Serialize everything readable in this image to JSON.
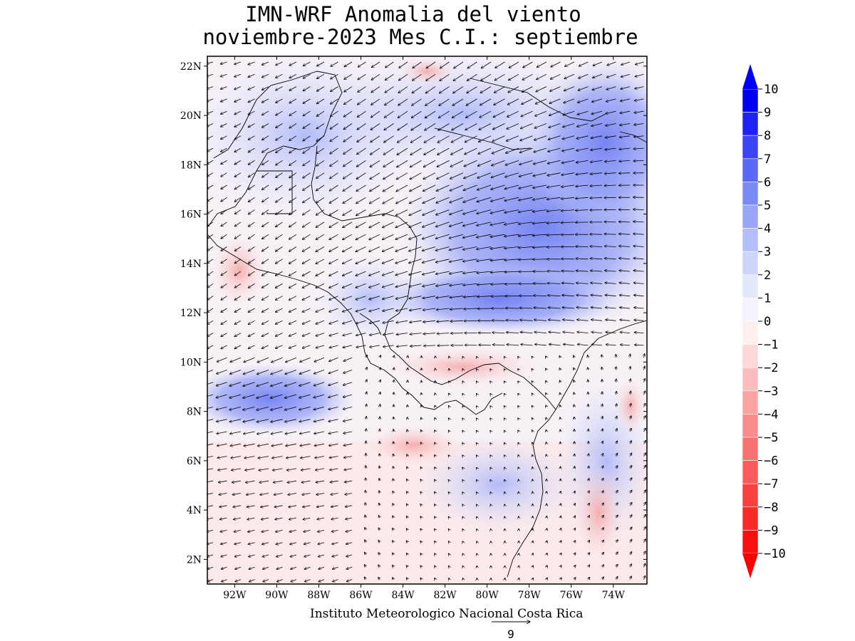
{
  "map": {
    "title_line1": "IMN-WRF Anomalia del viento",
    "title_line2": "noviembre-2023 Mes C.I.: septiembre",
    "credit": "Instituto Meteorologico Nacional Costa Rica",
    "reference_vector_label": "9",
    "lat_ticks": [
      "2N",
      "4N",
      "6N",
      "8N",
      "10N",
      "12N",
      "14N",
      "16N",
      "18N",
      "20N",
      "22N"
    ],
    "lon_ticks": [
      "92W",
      "90W",
      "88W",
      "86W",
      "84W",
      "82W",
      "80W",
      "78W",
      "76W",
      "74W"
    ],
    "lat_range": [
      1,
      22.4
    ],
    "lon_range": [
      -93.3,
      -72.4
    ]
  },
  "colorbar": {
    "labels": [
      "10",
      "9",
      "8",
      "7",
      "6",
      "5",
      "4",
      "3",
      "2",
      "1",
      "0",
      "-1",
      "-2",
      "-3",
      "-4",
      "-5",
      "-6",
      "-7",
      "-8",
      "-9",
      "-10"
    ],
    "colors": [
      "#0000f0",
      "#1e22f2",
      "#3c45f4",
      "#5b68f5",
      "#7a8bf7",
      "#99a6f8",
      "#b4bffa",
      "#cdd5fb",
      "#e3e8fd",
      "#f5f3fb",
      "#fff0ee",
      "#fcd8d8",
      "#fbbcbc",
      "#fba3a3",
      "#fa8b8b",
      "#f97272",
      "#f95a5a",
      "#f84141",
      "#f72929",
      "#f61010"
    ],
    "top_arrow_color": "#0000ff",
    "bottom_arrow_color": "#ff0000"
  }
}
